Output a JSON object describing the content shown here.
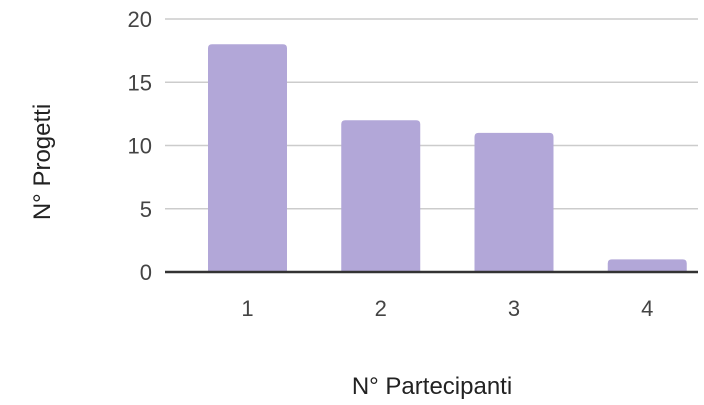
{
  "chart_data": {
    "type": "bar",
    "title": "",
    "xlabel": "N° Partecipanti",
    "ylabel": "N° Progetti",
    "categories": [
      "1",
      "2",
      "3",
      "4"
    ],
    "values": [
      18,
      12,
      11,
      1
    ],
    "ylim": [
      0,
      20
    ],
    "yticks": [
      0,
      5,
      10,
      15,
      20
    ],
    "grid": true,
    "legend": "none",
    "bar_color": "#b2a7d8",
    "grid_color": "#cccccc",
    "axis_color": "#333333"
  }
}
